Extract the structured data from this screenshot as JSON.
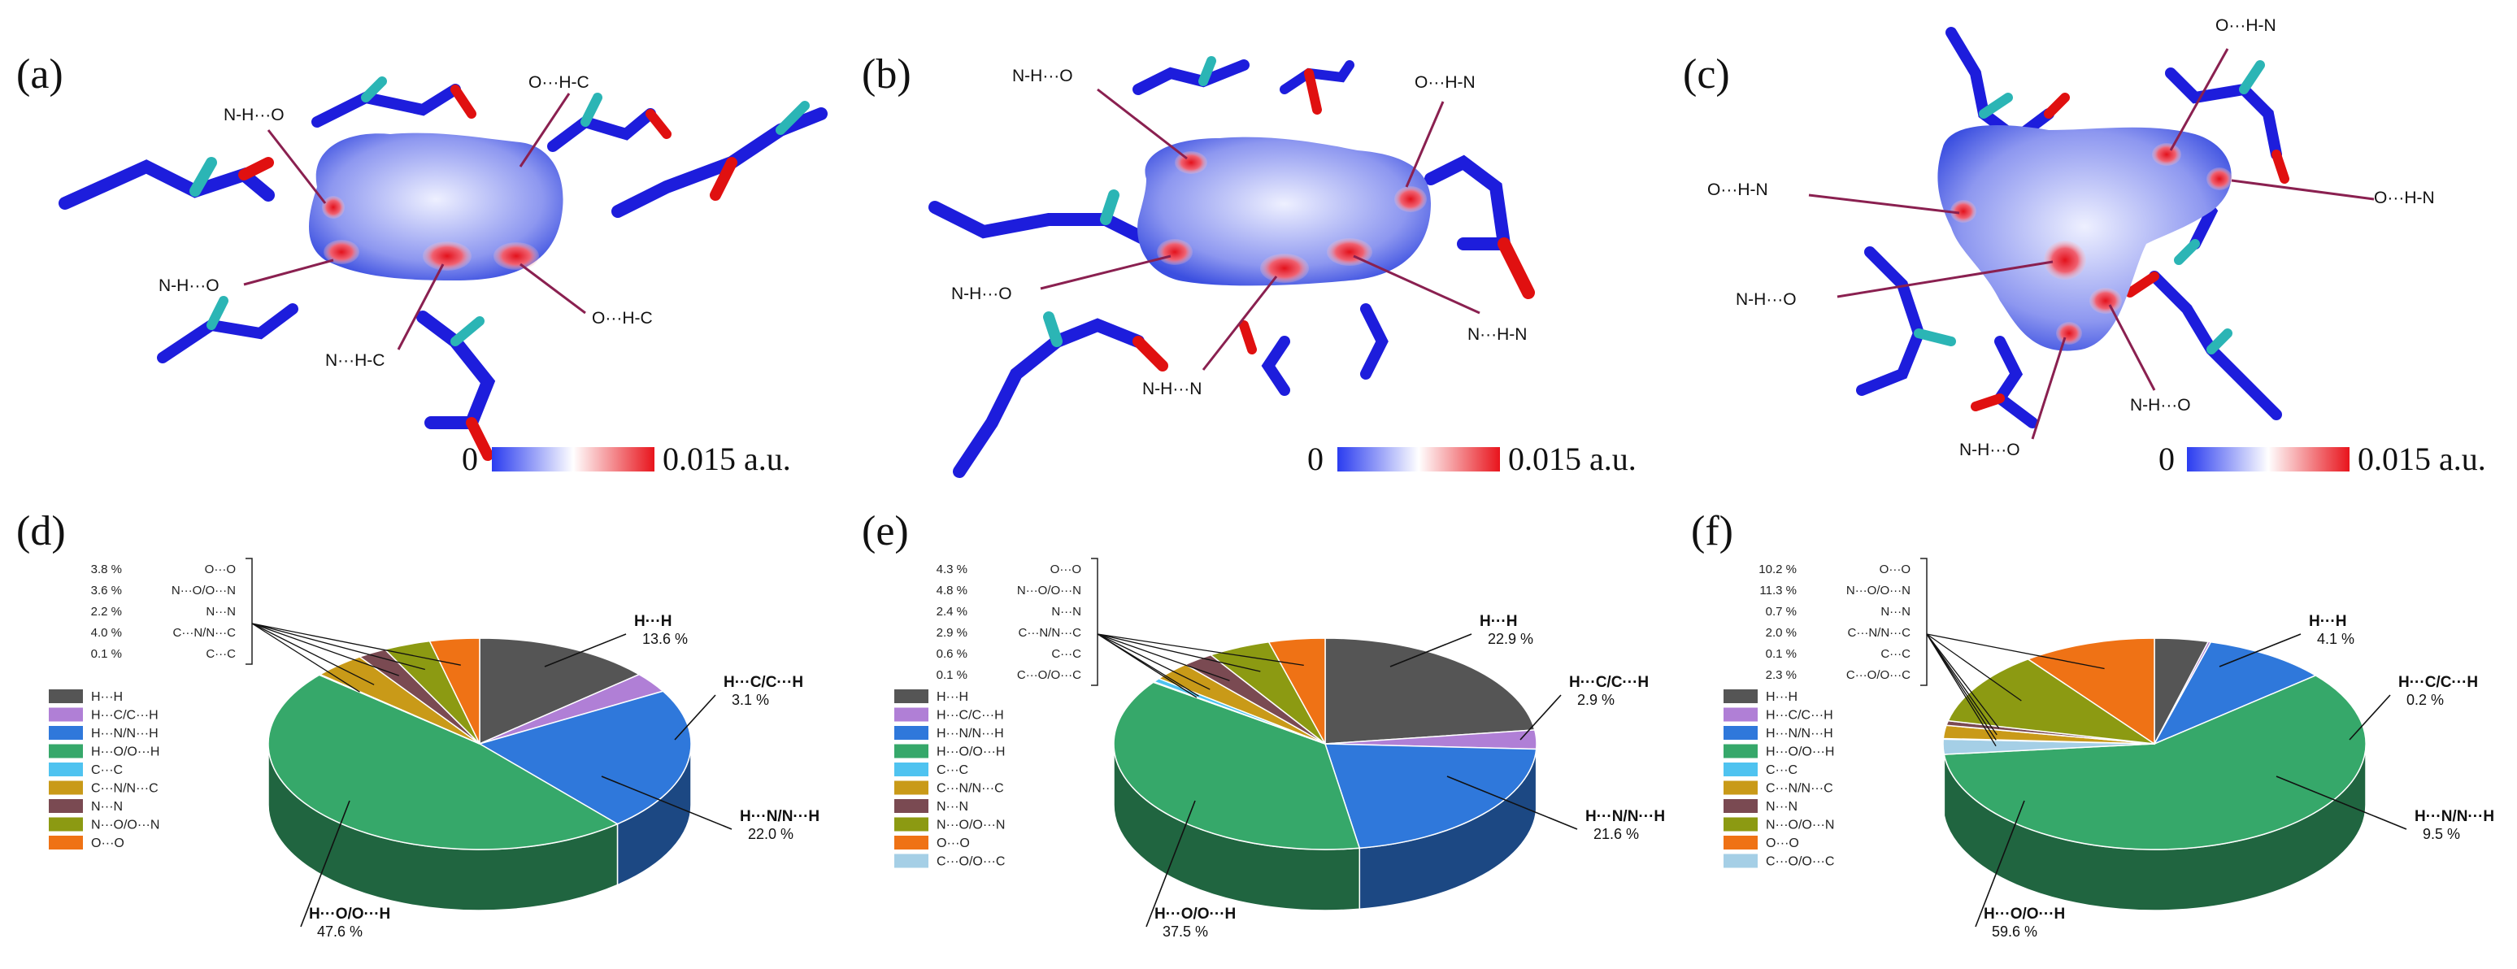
{
  "panels_top": [
    {
      "label": "(a)",
      "annotations": [
        "N-H···O",
        "O···H-C",
        "N-H···O",
        "N···H-C",
        "O···H-C"
      ],
      "scale": {
        "min_label": "0",
        "max_label": "0.015 a.u."
      }
    },
    {
      "label": "(b)",
      "annotations": [
        "N-H···O",
        "O···H-N",
        "N-H···O",
        "N-H···N",
        "N···H-N"
      ],
      "scale": {
        "min_label": "0",
        "max_label": "0.015 a.u."
      }
    },
    {
      "label": "(c)",
      "annotations": [
        "O···H-N",
        "O···H-N",
        "O···H-N",
        "N-H···O",
        "N-H···O",
        "N-H···O"
      ],
      "scale": {
        "min_label": "0",
        "max_label": "0.015 a.u."
      }
    }
  ],
  "colors": {
    "H···H": "#555555",
    "H···C/C···H": "#b07fd6",
    "H···N/N···H": "#2f78db",
    "H···O/O···H": "#36a86a",
    "C···C": "#4fc3f0",
    "C···N/N···C": "#c99a18",
    "N···N": "#7a4a52",
    "N···O/O···N": "#8c9a12",
    "O···O": "#ef7215",
    "C···O/O···C": "#a5cfe6"
  },
  "chart_data": [
    {
      "type": "pie",
      "panel_label": "(d)",
      "legend": [
        "H···H",
        "H···C/C···H",
        "H···N/N···H",
        "H···O/O···H",
        "C···C",
        "C···N/N···C",
        "N···N",
        "N···O/O···N",
        "O···O"
      ],
      "slices": [
        {
          "name": "H···H",
          "value": 13.6,
          "label": "H···H",
          "value_text": "13.6 %"
        },
        {
          "name": "H···C/C···H",
          "value": 3.1,
          "label": "H···C/C···H",
          "value_text": "3.1 %"
        },
        {
          "name": "H···N/N···H",
          "value": 22.0,
          "label": "H···N/N···H",
          "value_text": "22.0 %"
        },
        {
          "name": "H···O/O···H",
          "value": 47.6,
          "label": "H···O/O···H",
          "value_text": "47.6 %"
        },
        {
          "name": "C···C",
          "value": 0.1
        },
        {
          "name": "C···N/N···C",
          "value": 4.0
        },
        {
          "name": "N···N",
          "value": 2.2
        },
        {
          "name": "N···O/O···N",
          "value": 3.6
        },
        {
          "name": "O···O",
          "value": 3.8
        }
      ],
      "minor_table": [
        {
          "pct": "3.8 %",
          "name": "O···O"
        },
        {
          "pct": "3.6 %",
          "name": "N···O/O···N"
        },
        {
          "pct": "2.2 %",
          "name": "N···N"
        },
        {
          "pct": "4.0 %",
          "name": "C···N/N···C"
        },
        {
          "pct": "0.1 %",
          "name": "C···C"
        }
      ]
    },
    {
      "type": "pie",
      "panel_label": "(e)",
      "legend": [
        "H···H",
        "H···C/C···H",
        "H···N/N···H",
        "H···O/O···H",
        "C···C",
        "C···N/N···C",
        "N···N",
        "N···O/O···N",
        "O···O",
        "C···O/O···C"
      ],
      "slices": [
        {
          "name": "H···H",
          "value": 22.9,
          "label": "H···H",
          "value_text": "22.9 %"
        },
        {
          "name": "H···C/C···H",
          "value": 2.9,
          "label": "H···C/C···H",
          "value_text": "2.9 %"
        },
        {
          "name": "H···N/N···H",
          "value": 21.6,
          "label": "H···N/N···H",
          "value_text": "21.6 %"
        },
        {
          "name": "H···O/O···H",
          "value": 37.5,
          "label": "H···O/O···H",
          "value_text": "37.5 %"
        },
        {
          "name": "C···O/O···C",
          "value": 0.1
        },
        {
          "name": "C···C",
          "value": 0.6
        },
        {
          "name": "C···N/N···C",
          "value": 2.9
        },
        {
          "name": "N···N",
          "value": 2.4
        },
        {
          "name": "N···O/O···N",
          "value": 4.8
        },
        {
          "name": "O···O",
          "value": 4.3
        }
      ],
      "minor_table": [
        {
          "pct": "4.3 %",
          "name": "O···O"
        },
        {
          "pct": "4.8 %",
          "name": "N···O/O···N"
        },
        {
          "pct": "2.4 %",
          "name": "N···N"
        },
        {
          "pct": "2.9 %",
          "name": "C···N/N···C"
        },
        {
          "pct": "0.6 %",
          "name": "C···C"
        },
        {
          "pct": "0.1 %",
          "name": "C···O/O···C"
        }
      ]
    },
    {
      "type": "pie",
      "panel_label": "(f)",
      "legend": [
        "H···H",
        "H···C/C···H",
        "H···N/N···H",
        "H···O/O···H",
        "C···C",
        "C···N/N···C",
        "N···N",
        "N···O/O···N",
        "O···O",
        "C···O/O···C"
      ],
      "slices": [
        {
          "name": "H···H",
          "value": 4.1,
          "label": "H···H",
          "value_text": "4.1 %"
        },
        {
          "name": "H···C/C···H",
          "value": 0.2,
          "label": "H···C/C···H",
          "value_text": "0.2 %"
        },
        {
          "name": "H···N/N···H",
          "value": 9.5,
          "label": "H···N/N···H",
          "value_text": "9.5 %"
        },
        {
          "name": "H···O/O···H",
          "value": 59.6,
          "label": "H···O/O···H",
          "value_text": "59.6 %"
        },
        {
          "name": "C···O/O···C",
          "value": 2.3
        },
        {
          "name": "C···C",
          "value": 0.1
        },
        {
          "name": "C···N/N···C",
          "value": 2.0
        },
        {
          "name": "N···N",
          "value": 0.7
        },
        {
          "name": "N···O/O···N",
          "value": 11.3
        },
        {
          "name": "O···O",
          "value": 10.2
        }
      ],
      "minor_table": [
        {
          "pct": "10.2 %",
          "name": "O···O"
        },
        {
          "pct": "11.3 %",
          "name": "N···O/O···N"
        },
        {
          "pct": "0.7 %",
          "name": "N···N"
        },
        {
          "pct": "2.0 %",
          "name": "C···N/N···C"
        },
        {
          "pct": "0.1 %",
          "name": "C···C"
        },
        {
          "pct": "2.3 %",
          "name": "C···O/O···C"
        }
      ]
    }
  ]
}
